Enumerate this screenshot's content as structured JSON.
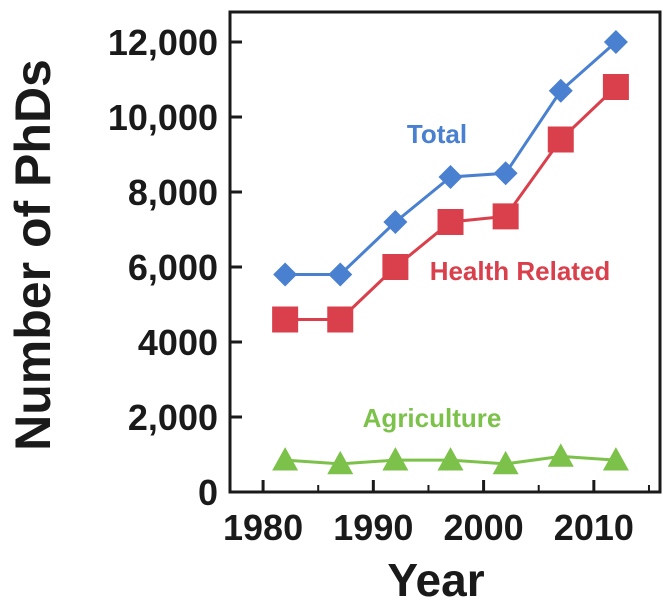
{
  "chart_data": {
    "type": "line",
    "xlabel": "Year",
    "ylabel": "Number of PhDs",
    "xlim": [
      1977,
      2016
    ],
    "ylim": [
      0,
      12800
    ],
    "x_ticks": [
      1980,
      1990,
      2000,
      2010
    ],
    "y_ticks": [
      {
        "value": 0,
        "label": "0"
      },
      {
        "value": 2000,
        "label": "2,000"
      },
      {
        "value": 4000,
        "label": "4000"
      },
      {
        "value": 6000,
        "label": "6,000"
      },
      {
        "value": 8000,
        "label": "8,000"
      },
      {
        "value": 10000,
        "label": "10,000"
      },
      {
        "value": 12000,
        "label": "12,000"
      }
    ],
    "x": [
      1982,
      1987,
      1992,
      1997,
      2002,
      2007,
      2012
    ],
    "series": [
      {
        "name": "Total",
        "color": "#4a80d0",
        "marker": "diamond",
        "values": [
          5800,
          5800,
          7200,
          8400,
          8500,
          10700,
          12000
        ]
      },
      {
        "name": "Health Related",
        "color": "#d9404c",
        "marker": "square",
        "values": [
          4600,
          4600,
          6000,
          7200,
          7350,
          9400,
          10800
        ]
      },
      {
        "name": "Agriculture",
        "color": "#7cc24a",
        "marker": "triangle",
        "values": [
          850,
          750,
          850,
          850,
          750,
          950,
          850
        ]
      }
    ],
    "grid": false,
    "legend": "inline labels"
  }
}
